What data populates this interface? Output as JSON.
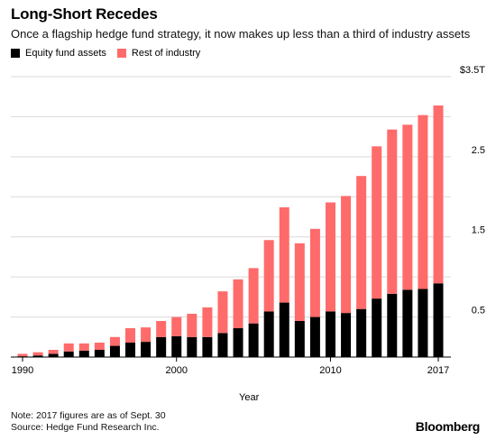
{
  "header": {
    "title": "Long-Short Recedes",
    "subtitle": "Once a flagship hedge fund strategy, it now makes up less than a third of industry assets"
  },
  "legend": {
    "items": [
      {
        "label": "Equity fund assets",
        "color": "#000000"
      },
      {
        "label": "Rest of industry",
        "color": "#ff6b6b"
      }
    ]
  },
  "footer": {
    "note": "Note: 2017 figures are as of Sept. 30",
    "source": "Source: Hedge Fund Research Inc.",
    "brand": "Bloomberg"
  },
  "chart_data": {
    "type": "bar",
    "stacked": true,
    "xlabel": "Year",
    "ylabel": "",
    "ylim": [
      0,
      3.5
    ],
    "yticks": [
      {
        "value": 0.5,
        "label": "0.5"
      },
      {
        "value": 1.5,
        "label": "1.5"
      },
      {
        "value": 2.5,
        "label": "2.5"
      },
      {
        "value": 3.5,
        "label": "$3.5T"
      }
    ],
    "xticks": [
      {
        "value": 1990,
        "label": "1990"
      },
      {
        "value": 2000,
        "label": "2000"
      },
      {
        "value": 2010,
        "label": "2010"
      },
      {
        "value": 2017,
        "label": "2017"
      }
    ],
    "grid": true,
    "categories": [
      1990,
      1991,
      1992,
      1993,
      1994,
      1995,
      1996,
      1997,
      1998,
      1999,
      2000,
      2001,
      2002,
      2003,
      2004,
      2005,
      2006,
      2007,
      2008,
      2009,
      2010,
      2011,
      2012,
      2013,
      2014,
      2015,
      2016,
      2017
    ],
    "series": [
      {
        "name": "Equity fund assets",
        "color": "#000000",
        "values": [
          0.01,
          0.02,
          0.04,
          0.07,
          0.08,
          0.09,
          0.14,
          0.18,
          0.19,
          0.25,
          0.26,
          0.25,
          0.25,
          0.3,
          0.36,
          0.42,
          0.57,
          0.68,
          0.45,
          0.5,
          0.57,
          0.55,
          0.6,
          0.73,
          0.79,
          0.84,
          0.85,
          0.92
        ]
      },
      {
        "name": "Rest of industry",
        "color": "#ff6b6b",
        "values": [
          0.03,
          0.04,
          0.05,
          0.1,
          0.09,
          0.09,
          0.11,
          0.18,
          0.18,
          0.2,
          0.24,
          0.29,
          0.37,
          0.52,
          0.61,
          0.69,
          0.89,
          1.19,
          0.97,
          1.1,
          1.36,
          1.46,
          1.66,
          1.9,
          2.05,
          2.06,
          2.17,
          2.22
        ]
      }
    ]
  }
}
